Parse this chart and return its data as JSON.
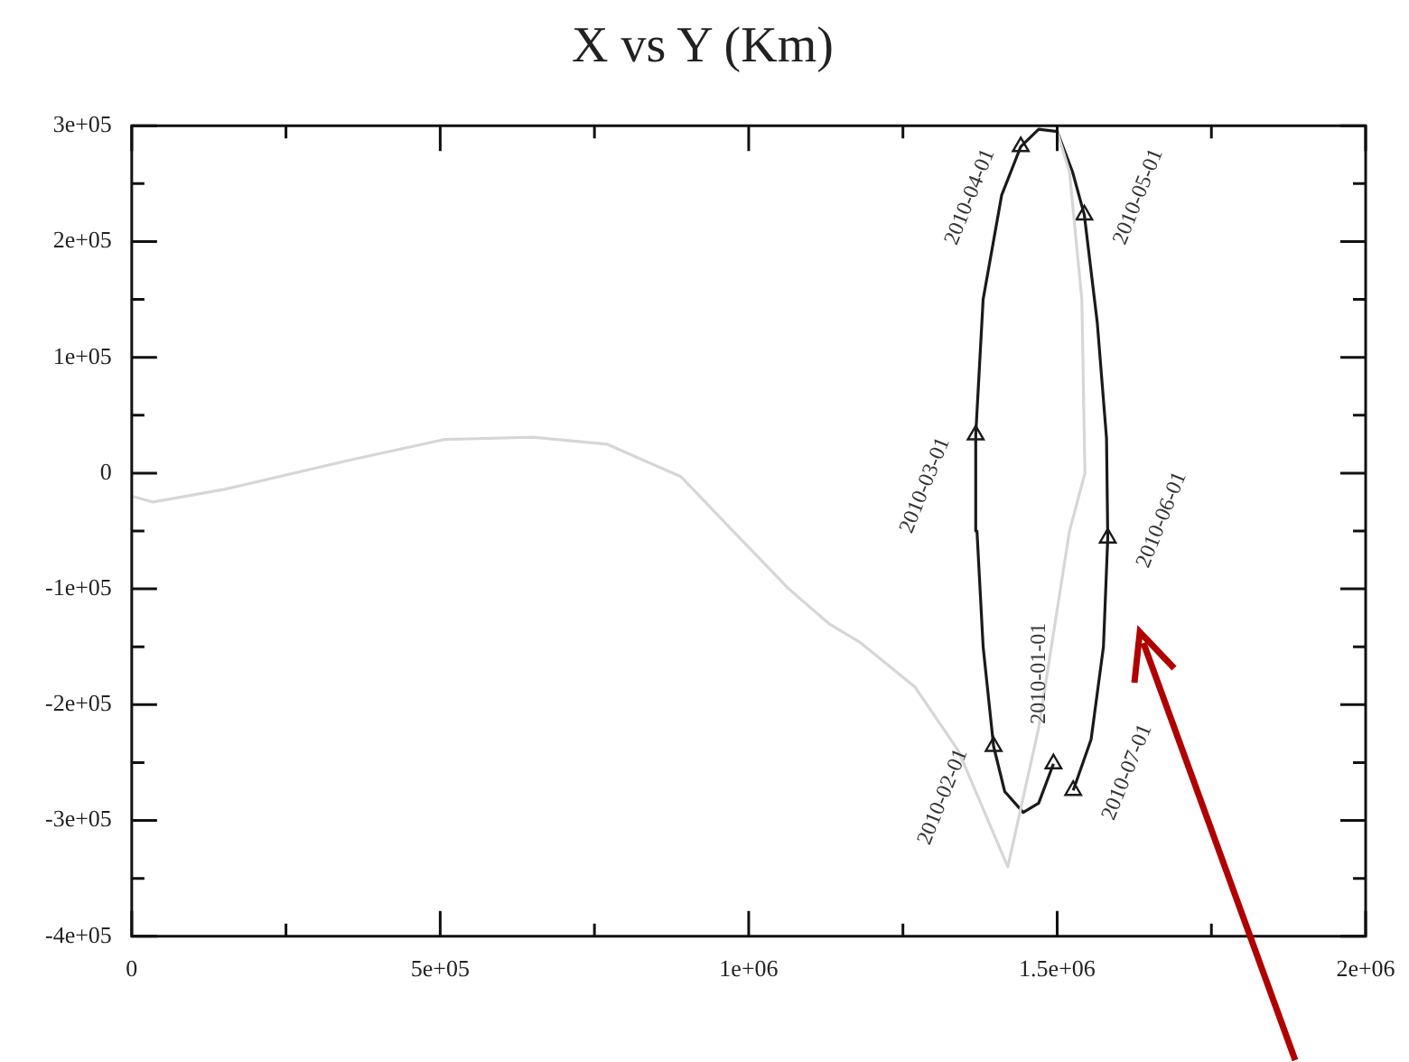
{
  "chart_data": {
    "type": "line",
    "title": "X vs Y (Km)",
    "xlim": [
      0,
      2000000
    ],
    "ylim": [
      -400000,
      300000
    ],
    "xticks": [
      {
        "value": 0,
        "label": "0"
      },
      {
        "value": 250000,
        "label": null
      },
      {
        "value": 500000,
        "label": "5e+05"
      },
      {
        "value": 750000,
        "label": null
      },
      {
        "value": 1000000,
        "label": "1e+06"
      },
      {
        "value": 1250000,
        "label": null
      },
      {
        "value": 1500000,
        "label": "1.5e+06"
      },
      {
        "value": 1750000,
        "label": null
      },
      {
        "value": 2000000,
        "label": "2e+06"
      }
    ],
    "yticks": [
      {
        "value": -400000,
        "label": "-4e+05"
      },
      {
        "value": -350000,
        "label": null
      },
      {
        "value": -300000,
        "label": "-3e+05"
      },
      {
        "value": -250000,
        "label": null
      },
      {
        "value": -200000,
        "label": "-2e+05"
      },
      {
        "value": -150000,
        "label": null
      },
      {
        "value": -100000,
        "label": "-1e+05"
      },
      {
        "value": -50000,
        "label": null
      },
      {
        "value": 0,
        "label": "0"
      },
      {
        "value": 50000,
        "label": null
      },
      {
        "value": 100000,
        "label": "1e+05"
      },
      {
        "value": 150000,
        "label": null
      },
      {
        "value": 200000,
        "label": "2e+05"
      },
      {
        "value": 250000,
        "label": null
      },
      {
        "value": 300000,
        "label": "3e+05"
      }
    ],
    "grid": false,
    "legend": false,
    "series": [
      {
        "type": "line",
        "color": "#d6d6d6",
        "x": [
          0,
          35000,
          150000,
          360000,
          506000,
          650000,
          770000,
          890000,
          980000,
          1065000,
          1130000,
          1180000,
          1270000,
          1340000,
          1400000,
          1420000,
          1470000,
          1520000,
          1545000,
          1540000,
          1520000,
          1500000
        ],
        "values": [
          -20000,
          -25000,
          -14000,
          12000,
          29000,
          31000,
          25000,
          -3000,
          -53000,
          -100000,
          -130000,
          -146000,
          -185000,
          -240000,
          -315000,
          -340000,
          -220000,
          -50000,
          0,
          150000,
          260000,
          295000
        ]
      },
      {
        "type": "line",
        "color": "#1a1a1a",
        "x": [
          1494000,
          1470000,
          1445000,
          1415000,
          1397000,
          1380000,
          1370000,
          1368000,
          1380000,
          1410000,
          1441000,
          1470000,
          1500000,
          1525000,
          1544000,
          1565000,
          1580000,
          1582000,
          1575000,
          1555000,
          1526000
        ],
        "values": [
          -251000,
          -285000,
          -293000,
          -275000,
          -236000,
          -150000,
          -50000,
          33000,
          150000,
          240000,
          282000,
          297000,
          295000,
          260000,
          223000,
          130000,
          30000,
          -56000,
          -150000,
          -230000,
          -274000
        ]
      },
      {
        "type": "scatter",
        "color": "#1a1a1a",
        "marker": "triangle",
        "x": [
          1494000,
          1397000,
          1368000,
          1441000,
          1544000,
          1582000,
          1526000
        ],
        "values": [
          -251000,
          -236000,
          33000,
          282000,
          223000,
          -56000,
          -274000
        ]
      }
    ],
    "annotations": [
      {
        "text": "2010-01-01",
        "x": 1494000,
        "y": -251000
      },
      {
        "text": "2010-02-01",
        "x": 1397000,
        "y": -236000
      },
      {
        "text": "2010-03-01",
        "x": 1368000,
        "y": 33000
      },
      {
        "text": "2010-04-01",
        "x": 1441000,
        "y": 282000
      },
      {
        "text": "2010-05-01",
        "x": 1544000,
        "y": 223000
      },
      {
        "text": "2010-06-01",
        "x": 1582000,
        "y": -56000
      },
      {
        "text": "2010-07-01",
        "x": 1526000,
        "y": -274000
      }
    ]
  }
}
